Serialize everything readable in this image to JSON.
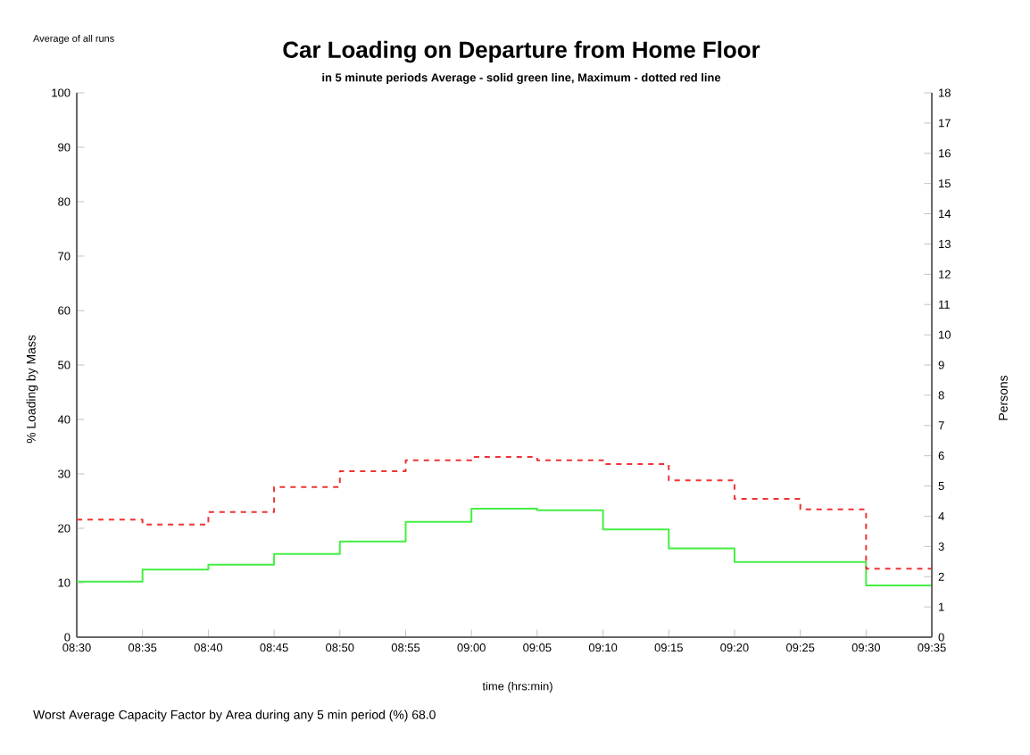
{
  "chart_data": {
    "type": "step",
    "title": "Car Loading on Departure from Home Floor",
    "subtitle": "in 5 minute periods  Average - solid green line,  Maximum -  dotted red line",
    "xlabel": "time (hrs:min)",
    "ylabel": "% Loading by Mass",
    "y2label": "Persons",
    "annotations": [
      "Average of all runs",
      "Worst Average Capacity Factor by Area during any 5 min period (%)   68.0"
    ],
    "x": [
      8.5,
      8.5833,
      8.6667,
      8.75,
      8.8333,
      8.9167,
      9.0,
      9.0833,
      9.1667,
      9.25,
      9.3333,
      9.4167,
      9.5,
      9.5833
    ],
    "series": [
      {
        "color": "#44ee44",
        "line_style": "solid",
        "values": [
          10.2,
          12.4,
          13.3,
          15.3,
          17.6,
          21.2,
          23.6,
          23.3,
          19.8,
          16.3,
          13.8,
          13.8,
          9.5,
          9.5
        ]
      },
      {
        "color": "#ee3333",
        "line_style": "dashed",
        "values": [
          21.6,
          20.7,
          23.0,
          27.6,
          30.5,
          32.5,
          33.1,
          32.5,
          31.8,
          28.8,
          25.4,
          23.5,
          12.6,
          12.6
        ]
      }
    ],
    "xlim": [
      8.5,
      9.5833
    ],
    "xticks": [
      {
        "value": 8.5,
        "label": "08:30"
      },
      {
        "value": 8.5833,
        "label": "08:35"
      },
      {
        "value": 8.6667,
        "label": "08:40"
      },
      {
        "value": 8.75,
        "label": "08:45"
      },
      {
        "value": 8.8333,
        "label": "08:50"
      },
      {
        "value": 8.9167,
        "label": "08:55"
      },
      {
        "value": 9.0,
        "label": "09:00"
      },
      {
        "value": 9.0833,
        "label": "09:05"
      },
      {
        "value": 9.1667,
        "label": "09:10"
      },
      {
        "value": 9.25,
        "label": "09:15"
      },
      {
        "value": 9.3333,
        "label": "09:20"
      },
      {
        "value": 9.4167,
        "label": "09:25"
      },
      {
        "value": 9.5,
        "label": "09:30"
      },
      {
        "value": 9.5833,
        "label": "09:35"
      }
    ],
    "ylim": [
      0,
      100
    ],
    "yticks": [
      0,
      10,
      20,
      30,
      40,
      50,
      60,
      70,
      80,
      90,
      100
    ],
    "y2lim": [
      0,
      18
    ],
    "y2ticks": [
      0,
      1,
      2,
      3,
      4,
      5,
      6,
      7,
      8,
      9,
      10,
      11,
      12,
      13,
      14,
      15,
      16,
      17,
      18
    ],
    "grid": false
  }
}
